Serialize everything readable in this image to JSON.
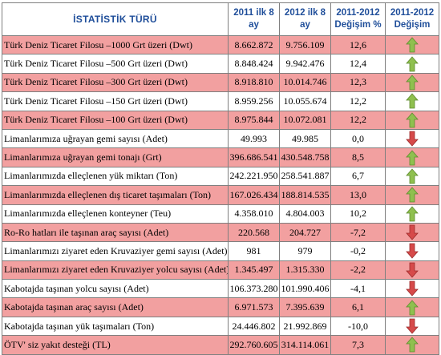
{
  "columns": [
    "İSTATİSTİK TÜRÜ",
    "2011 ilk 8 ay",
    "2012 ilk 8 ay",
    "2011-2012 Değişim %",
    "2011-2012 Değişim"
  ],
  "colors": {
    "up_arrow": "#8fc04f",
    "down_arrow": "#d64a4a",
    "pink_row": "#f2a0a0",
    "header_text": "#1f4e9a"
  },
  "rows": [
    {
      "label": "Türk Deniz Ticaret Filosu –1000 Grt üzeri (Dwt)",
      "v2011": "8.662.872",
      "v2012": "9.756.109",
      "change": "12,6",
      "trend": "up-arrow-icon"
    },
    {
      "label": "Türk Deniz Ticaret Filosu –500 Grt üzeri (Dwt)",
      "v2011": "8.848.424",
      "v2012": "9.942.476",
      "change": "12,4",
      "trend": "up-arrow-icon"
    },
    {
      "label": "Türk Deniz Ticaret Filosu –300 Grt üzeri (Dwt)",
      "v2011": "8.918.810",
      "v2012": "10.014.746",
      "change": "12,3",
      "trend": "up-arrow-icon"
    },
    {
      "label": "Türk Deniz Ticaret Filosu –150 Grt üzeri (Dwt)",
      "v2011": "8.959.256",
      "v2012": "10.055.674",
      "change": "12,2",
      "trend": "up-arrow-icon"
    },
    {
      "label": "Türk Deniz Ticaret Filosu –100 Grt üzeri (Dwt)",
      "v2011": "8.975.844",
      "v2012": "10.072.081",
      "change": "12,2",
      "trend": "up-arrow-icon"
    },
    {
      "label": "Limanlarımıza uğrayan gemi sayısı (Adet)",
      "v2011": "49.993",
      "v2012": "49.985",
      "change": "0,0",
      "trend": "down-arrow-icon"
    },
    {
      "label": "Limanlarımıza uğrayan gemi tonajı (Grt)",
      "v2011": "396.686.541",
      "v2012": "430.548.758",
      "change": "8,5",
      "trend": "up-arrow-icon"
    },
    {
      "label": "Limanlarımızda elleçlenen yük miktarı (Ton)",
      "v2011": "242.221.950",
      "v2012": "258.541.887",
      "change": "6,7",
      "trend": "up-arrow-icon"
    },
    {
      "label": "Limanlarımızda elleçlenen dış ticaret taşımaları (Ton)",
      "v2011": "167.026.434",
      "v2012": "188.814.535",
      "change": "13,0",
      "trend": "up-arrow-icon"
    },
    {
      "label": "Limanlarımızda elleçlenen konteyner (Teu)",
      "v2011": "4.358.010",
      "v2012": "4.804.003",
      "change": "10,2",
      "trend": "up-arrow-icon"
    },
    {
      "label": "Ro-Ro hatları ile taşınan araç sayısı (Adet)",
      "v2011": "220.568",
      "v2012": "204.727",
      "change": "-7,2",
      "trend": "down-arrow-icon"
    },
    {
      "label": "Limanlarımızı ziyaret eden Kruvaziyer gemi sayısı (Adet)",
      "v2011": "981",
      "v2012": "979",
      "change": "-0,2",
      "trend": "down-arrow-icon"
    },
    {
      "label": "Limanlarımızı ziyaret eden Kruvaziyer yolcu sayısı (Adet)",
      "v2011": "1.345.497",
      "v2012": "1.315.330",
      "change": "-2,2",
      "trend": "down-arrow-icon"
    },
    {
      "label": "Kabotajda taşınan yolcu sayısı (Adet)",
      "v2011": "106.373.280",
      "v2012": "101.990.406",
      "change": "-4,1",
      "trend": "down-arrow-icon"
    },
    {
      "label": "Kabotajda taşınan araç sayısı (Adet)",
      "v2011": "6.971.573",
      "v2012": "7.395.639",
      "change": "6,1",
      "trend": "up-arrow-icon"
    },
    {
      "label": "Kabotajda taşınan yük taşımaları (Ton)",
      "v2011": "24.446.802",
      "v2012": "21.992.869",
      "change": "-10,0",
      "trend": "down-arrow-icon"
    },
    {
      "label": "ÖTV' siz yakıt desteği (TL)",
      "v2011": "292.760.605",
      "v2012": "314.114.061",
      "change": "7,3",
      "trend": "up-arrow-icon"
    }
  ]
}
